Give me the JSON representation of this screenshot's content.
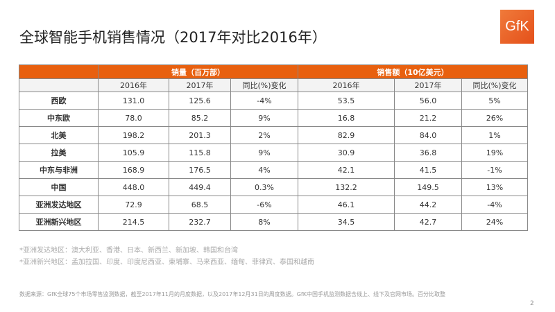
{
  "title": "全球智能手机销售情况（2017年对比2016年）",
  "logo": "GfK",
  "table": {
    "group_headers": [
      "销量（百万部）",
      "销售额（10亿美元）"
    ],
    "sub_headers": [
      "2016年",
      "2017年",
      "同比(%)变化",
      "2016年",
      "2017年",
      "同比(%)变化"
    ],
    "rows": [
      [
        "西欧",
        "131.0",
        "125.6",
        "-4%",
        "53.5",
        "56.0",
        "5%"
      ],
      [
        "中东欧",
        "78.0",
        "85.2",
        "9%",
        "16.8",
        "21.2",
        "26%"
      ],
      [
        "北美",
        "198.2",
        "201.3",
        "2%",
        "82.9",
        "84.0",
        "1%"
      ],
      [
        "拉美",
        "105.9",
        "115.8",
        "9%",
        "30.9",
        "36.8",
        "19%"
      ],
      [
        "中东与非洲",
        "168.9",
        "176.5",
        "4%",
        "42.1",
        "41.5",
        "-1%"
      ],
      [
        "中国",
        "448.0",
        "449.4",
        "0.3%",
        "132.2",
        "149.5",
        "13%"
      ],
      [
        "亚洲发达地区",
        "72.9",
        "68.5",
        "-6%",
        "46.1",
        "44.2",
        "-4%"
      ],
      [
        "亚洲新兴地区",
        "214.5",
        "232.7",
        "8%",
        "34.5",
        "42.7",
        "24%"
      ]
    ]
  },
  "notes": [
    "*亚洲发达地区：澳大利亚、香港、日本、新西兰、新加坡、韩国和台湾",
    "*亚洲新兴地区：孟加拉国、印度、印度尼西亚、柬埔寨、马来西亚、缅甸、菲律宾、泰国和越南"
  ],
  "source": "数据来源：GfK全球75个市场零售监测数据，截至2017年11月的月度数据，以及2017年12月31日的周度数据。GfK中国手机监测数据含线上、线下及官网市场。百分比取整",
  "page_number": "2",
  "colors": {
    "accent": "#e8600f"
  }
}
